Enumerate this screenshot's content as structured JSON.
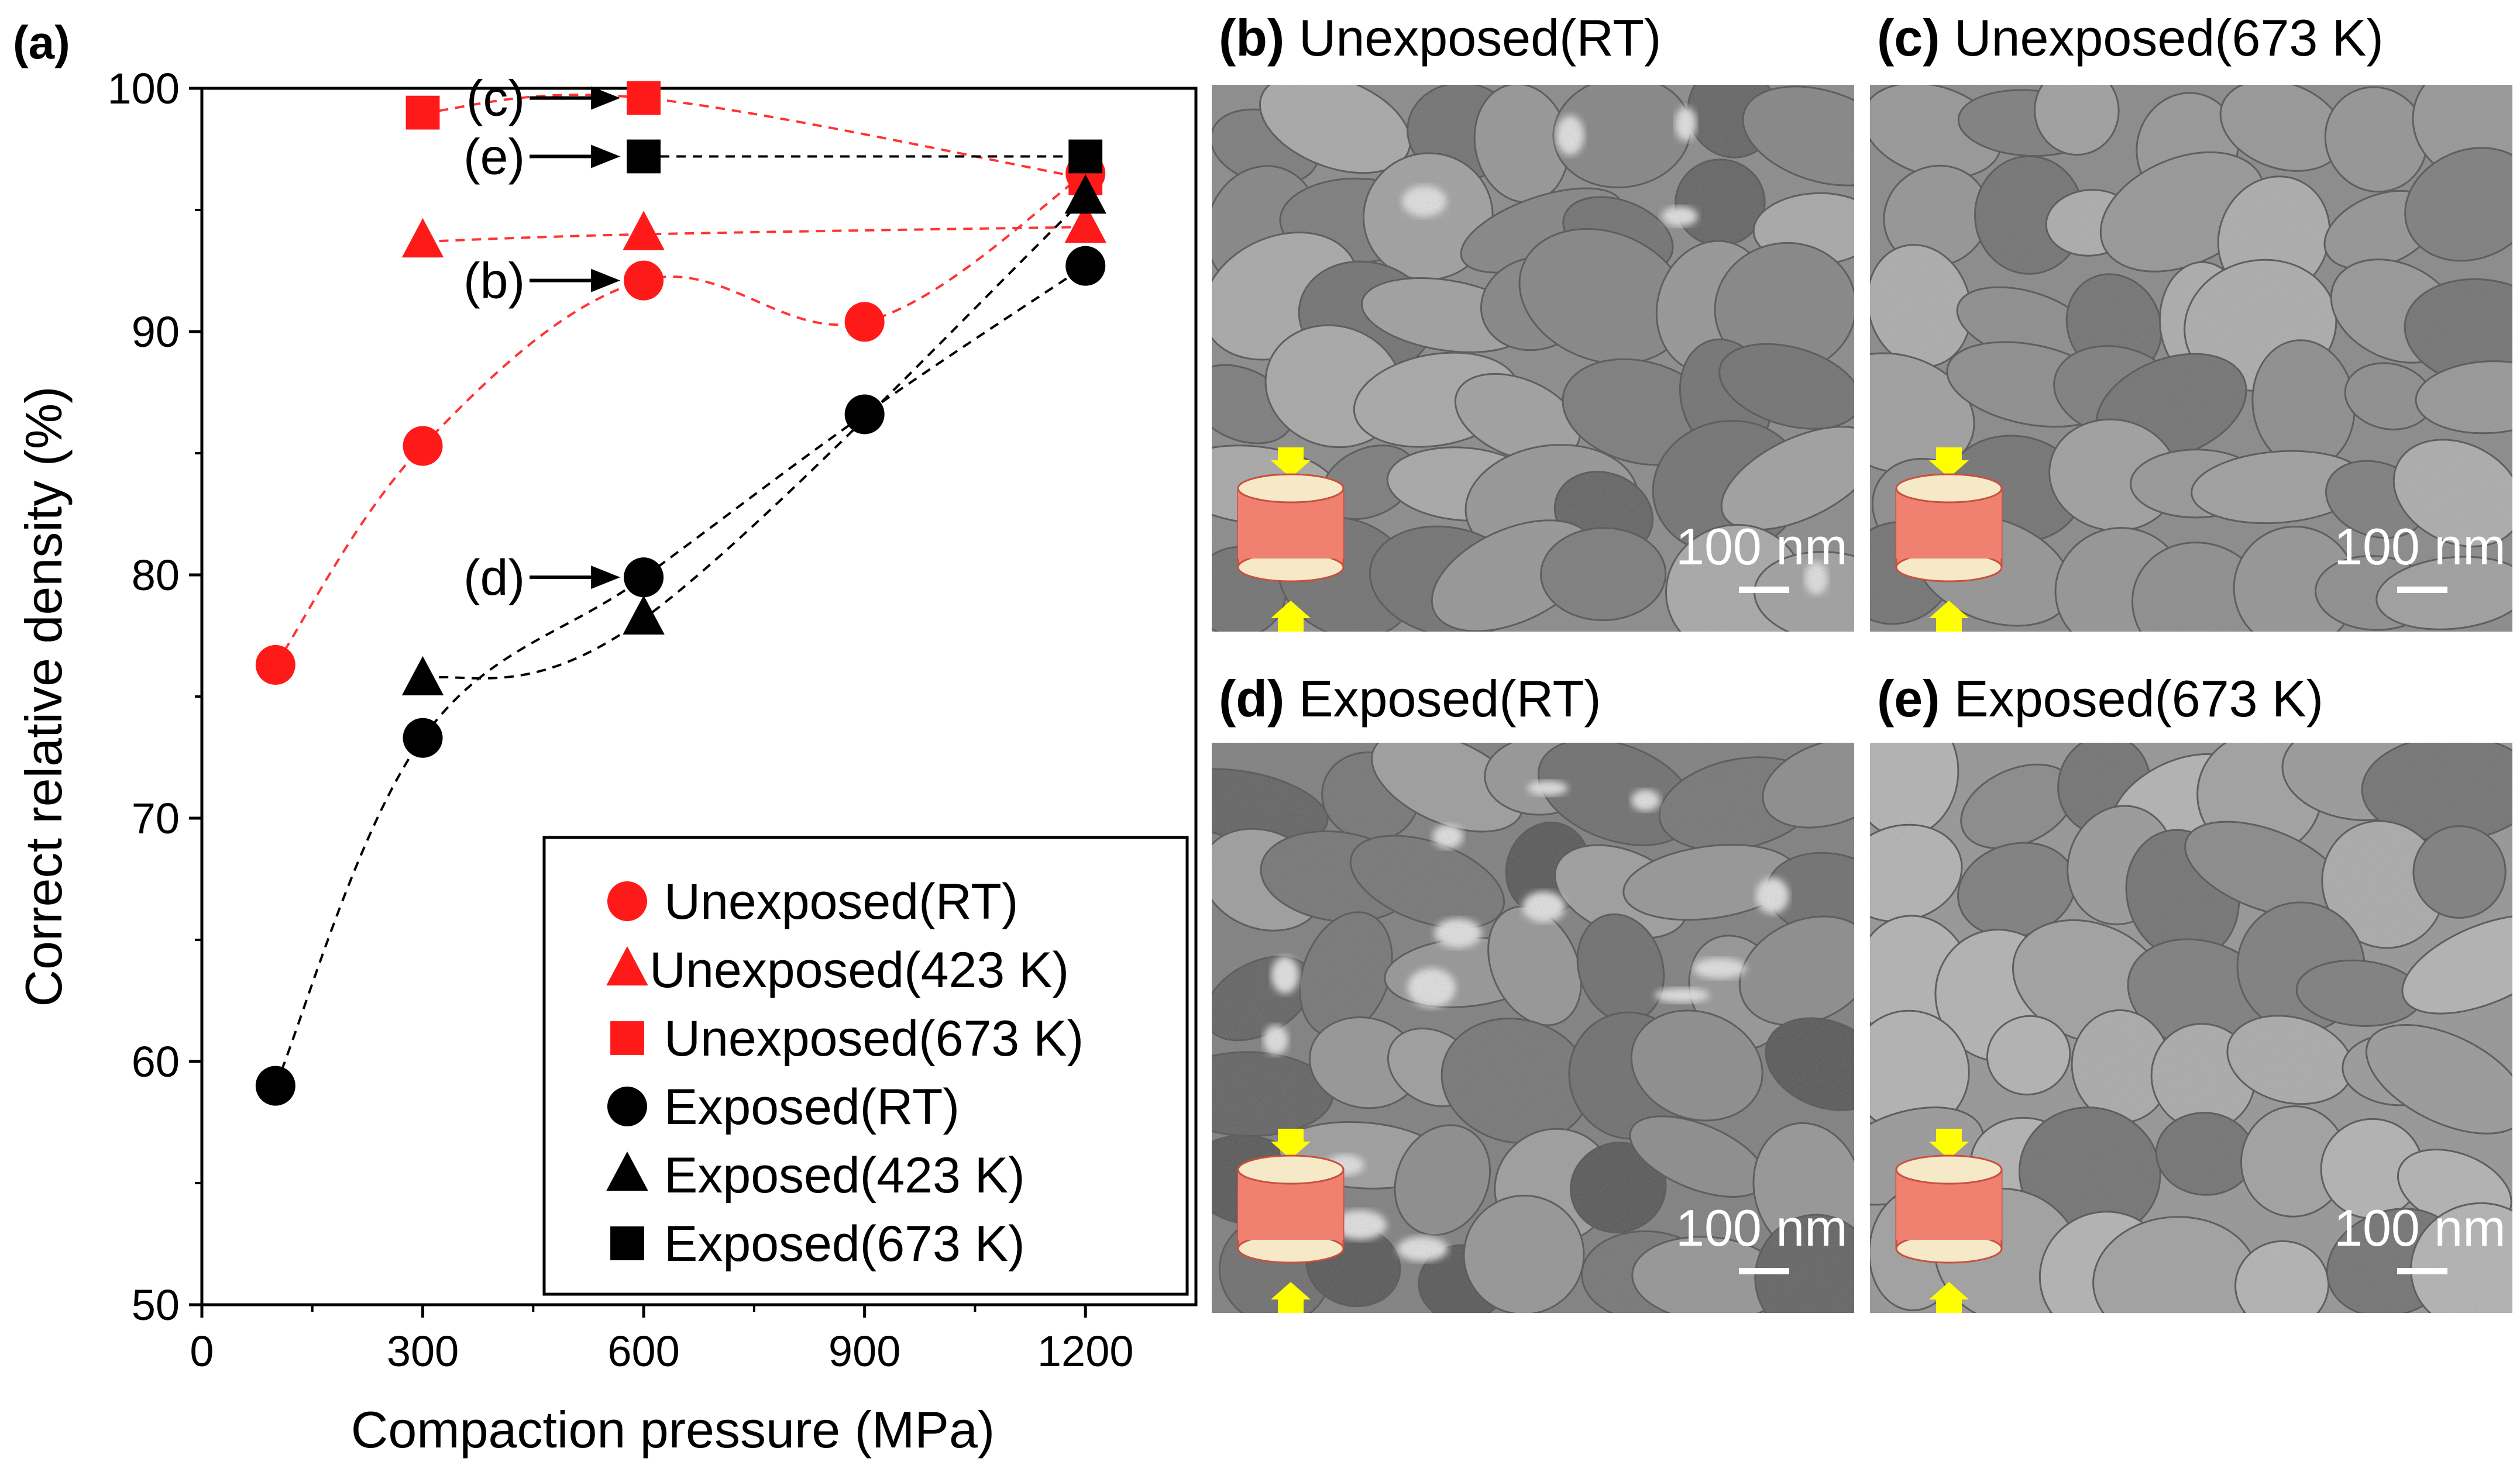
{
  "panel_a": {
    "label": "(a)"
  },
  "chart_data": {
    "type": "scatter",
    "title": "",
    "xlabel": "Compaction pressure (MPa)",
    "ylabel": "Correct relative density (%)",
    "xlim": [
      0,
      1350
    ],
    "ylim": [
      50,
      100
    ],
    "xticks": [
      0,
      300,
      600,
      900,
      1200
    ],
    "yticks": [
      50,
      60,
      70,
      80,
      90,
      100
    ],
    "legend_position": "bottom-right",
    "series": [
      {
        "name": "Unexposed(RT)",
        "marker": "circle",
        "color": "#ff1a1a",
        "line_color": "#ff3333",
        "x": [
          100,
          300,
          600,
          900,
          1200
        ],
        "y": [
          76.3,
          85.3,
          92.1,
          90.4,
          96.5
        ]
      },
      {
        "name": "Unexposed(423 K)",
        "marker": "triangle",
        "color": "#ff1a1a",
        "line_color": "#ff3333",
        "x": [
          300,
          600,
          1200
        ],
        "y": [
          93.7,
          94.0,
          94.3
        ]
      },
      {
        "name": "Unexposed(673 K)",
        "marker": "square",
        "color": "#ff1a1a",
        "line_color": "#ff3333",
        "x": [
          300,
          600,
          1200
        ],
        "y": [
          99.0,
          99.6,
          96.3
        ]
      },
      {
        "name": "Exposed(RT)",
        "marker": "circle",
        "color": "#000000",
        "line_color": "#000000",
        "x": [
          100,
          300,
          600,
          900,
          1200
        ],
        "y": [
          59.0,
          73.3,
          79.9,
          86.6,
          92.7
        ]
      },
      {
        "name": "Exposed(423 K)",
        "marker": "triangle",
        "color": "#000000",
        "line_color": "#000000",
        "x": [
          300,
          600,
          1200
        ],
        "y": [
          75.7,
          78.2,
          95.5
        ]
      },
      {
        "name": "Exposed(673 K)",
        "marker": "square",
        "color": "#000000",
        "line_color": "#000000",
        "x": [
          600,
          1200
        ],
        "y": [
          97.2,
          97.2
        ]
      }
    ],
    "annotations": [
      {
        "text": "(c)",
        "points_to": [
          600,
          99.6
        ]
      },
      {
        "text": "(e)",
        "points_to": [
          600,
          97.2
        ]
      },
      {
        "text": "(b)",
        "points_to": [
          600,
          92.1
        ]
      },
      {
        "text": "(d)",
        "points_to": [
          600,
          79.9
        ]
      }
    ]
  },
  "micrographs": [
    {
      "letter": "(b)",
      "title": "Unexposed(RT)",
      "scale_bar": "100 nm",
      "variant": "rt-unexposed"
    },
    {
      "letter": "(c)",
      "title": "Unexposed(673 K)",
      "scale_bar": "100 nm",
      "variant": "hot-unexposed"
    },
    {
      "letter": "(d)",
      "title": "Exposed(RT)",
      "scale_bar": "100 nm",
      "variant": "rt-exposed"
    },
    {
      "letter": "(e)",
      "title": "Exposed(673 K)",
      "scale_bar": "100 nm",
      "variant": "hot-exposed"
    }
  ],
  "colors": {
    "unexposed": "#ff1a1a",
    "exposed": "#000000",
    "arrow": "#ffff00",
    "pellet": "#f08070"
  }
}
